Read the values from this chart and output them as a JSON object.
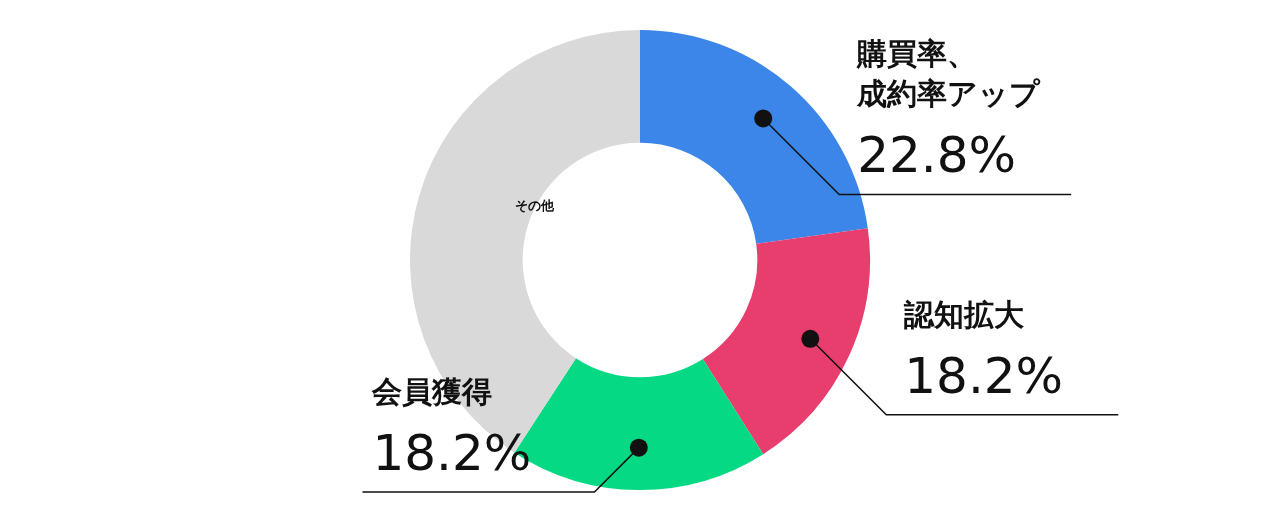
{
  "chart_data": {
    "type": "donut",
    "categories": [
      "購買率、成約率アップ",
      "認知拡大",
      "会員獲得",
      "その他"
    ],
    "values": [
      22.8,
      18.2,
      18.2,
      40.8
    ],
    "colors": [
      "#3b86e8",
      "#e83e6e",
      "#06d984",
      "#d9d9d9"
    ],
    "value_labels": [
      "22.8%",
      "18.2%",
      "18.2%",
      null
    ],
    "legend": false
  }
}
